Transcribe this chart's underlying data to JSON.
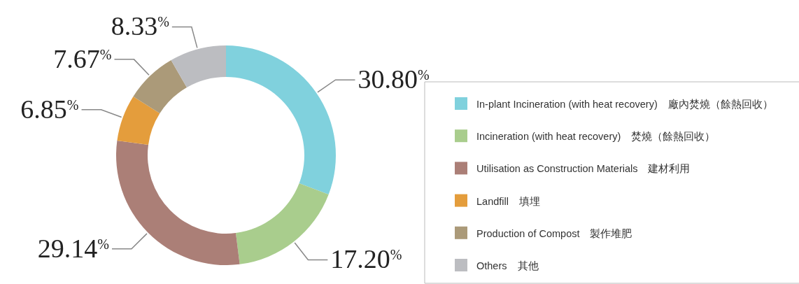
{
  "chart_data": {
    "type": "donut",
    "categories": [
      "In-plant Incineration (with heat recovery)　廠內焚燒（餘熱回收）",
      "Incineration (with heat recovery)　焚燒（餘熱回收）",
      "Utilisation as Construction Materials　建材利用",
      "Landfill　填埋",
      "Production of Compost　製作堆肥",
      "Others　其他"
    ],
    "values": [
      30.8,
      17.2,
      29.14,
      6.85,
      7.67,
      8.33
    ],
    "colors": [
      "#80d1dd",
      "#a9cd8d",
      "#ab7f77",
      "#e49d3c",
      "#ab9a79",
      "#bcbdc1"
    ],
    "value_labels": [
      "30.80$^{%}$",
      "17.20$^{%}$",
      "29.14$^{%}$",
      "6.85$^{%}$",
      "7.67$^{%}$",
      "8.33$^{%}$"
    ],
    "legend": "right"
  }
}
